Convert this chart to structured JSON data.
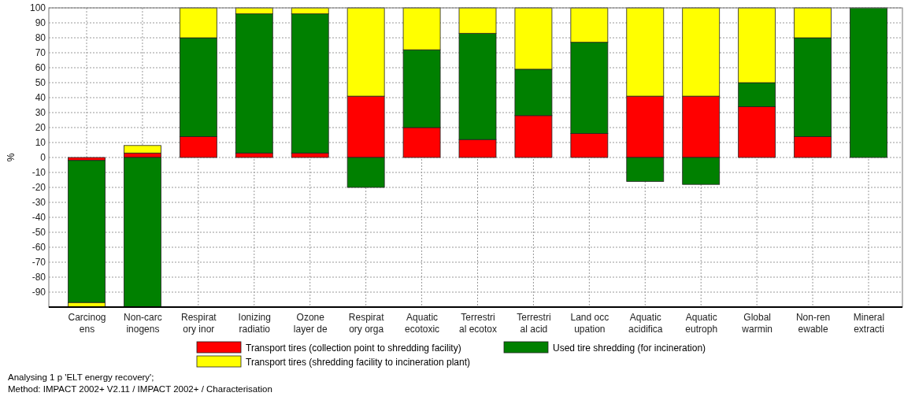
{
  "chart_data": {
    "type": "bar",
    "stacked": true,
    "ylabel": "%",
    "categories": [
      "Carcinog\nens",
      "Non-carc\ninogens",
      "Respirat\nory inor",
      "Ionizing\nradiatio",
      "Ozone\nlayer de",
      "Respirat\nory orga",
      "Aquatic\necotoxic",
      "Terrestri\nal ecotox",
      "Terrestri\nal acid",
      "Land occ\nupation",
      "Aquatic\nacidifica",
      "Aquatic\neutroph",
      "Global\nwarmin",
      "Non-ren\newable",
      "Mineral\nextracti"
    ],
    "series": [
      {
        "name": "Transport tires (collection point to shredding facility)",
        "color": "#ff0000",
        "values": [
          -2,
          3,
          14,
          3,
          3,
          41,
          20,
          12,
          28,
          16,
          41,
          41,
          34,
          14,
          0
        ]
      },
      {
        "name": "Used tire shredding (for incineration)",
        "color": "#008000",
        "values": [
          -95,
          -100,
          66,
          93,
          93,
          -20,
          52,
          71,
          31,
          61,
          -16,
          -18,
          16,
          66,
          100
        ]
      },
      {
        "name": "Transport tires (shredding facility to incineration plant)",
        "color": "#ffff00",
        "values": [
          -3,
          5,
          20,
          4,
          4,
          59,
          28,
          17,
          41,
          23,
          59,
          59,
          50,
          20,
          0
        ]
      }
    ],
    "ylim": [
      -100,
      100
    ],
    "yticks": [
      -90,
      -80,
      -70,
      -60,
      -50,
      -40,
      -30,
      -20,
      -10,
      0,
      10,
      20,
      30,
      40,
      50,
      60,
      70,
      80,
      90,
      100
    ],
    "grid": true,
    "legend": "bottom",
    "annotations": [
      "Analysing 1 p 'ELT energy recovery';",
      "Method: IMPACT 2002+ V2.11 / IMPACT 2002+ / Characterisation"
    ]
  }
}
